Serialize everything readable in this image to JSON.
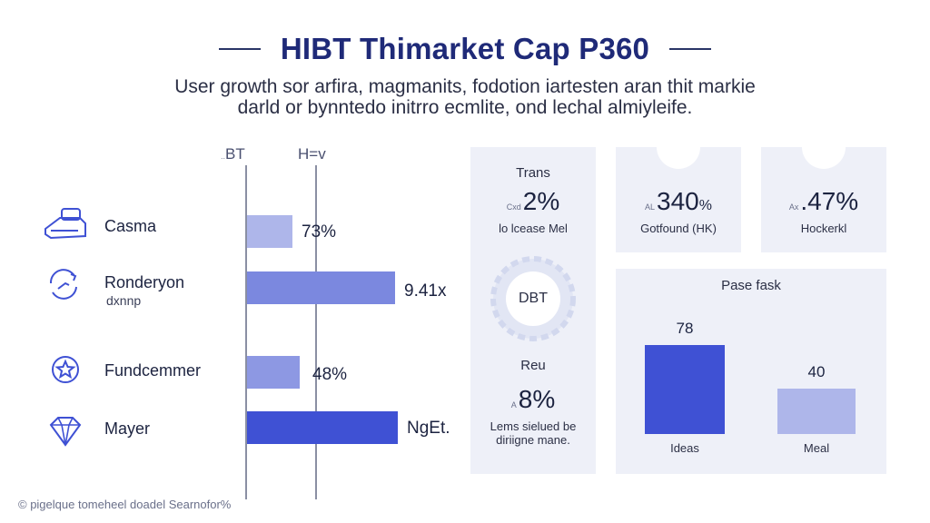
{
  "header": {
    "title": "HIBT Thimarket Cap P360",
    "subtitle_line1": "User growth sor arfira, magmanits, fodotion iartesten aran thit markie",
    "subtitle_line2": "darld or bynntedo initrro ecmlite, ond lechal almiyleife."
  },
  "colors": {
    "accent": "#3f51d4",
    "bar_light": "#aeb6ea",
    "bar_mid": "#7b88df",
    "bar_dark": "#3f51d4",
    "panel": "#eef0f8"
  },
  "chart_data": [
    {
      "type": "bar",
      "orientation": "horizontal",
      "axis_labels": {
        "left_prefix": "..",
        "left": "BT",
        "right": "H=v"
      },
      "categories": [
        {
          "label": "Casma",
          "sub": "",
          "icon": "vr-headset-icon",
          "value_label": "73%"
        },
        {
          "label": "Ronderyon",
          "sub": "dxnnp",
          "icon": "refresh-cycle-icon",
          "value_label": "9.41x"
        },
        {
          "label": "Fundcemmer",
          "sub": "",
          "icon": "star-badge-icon",
          "value_label": "48%"
        },
        {
          "label": "Mayer",
          "sub": "",
          "icon": "diamond-icon",
          "value_label": "NgEt."
        }
      ],
      "values": [
        0.3,
        0.98,
        0.35,
        1.0
      ],
      "value_scale": "fraction of longest bar"
    },
    {
      "type": "bar",
      "title": "Pase fask",
      "categories": [
        "Ideas",
        "Meal"
      ],
      "values": [
        78,
        40
      ]
    }
  ],
  "kpis": {
    "trans": {
      "label": "Trans",
      "prefix": "Cxd",
      "value": "2%",
      "sub": "lo lcease Mel"
    },
    "k340": {
      "prefix": "AL",
      "value": "340",
      "suffix": "%",
      "sub": "Gotfound (HK)"
    },
    "k47": {
      "prefix": "Ax",
      "value": ".47%",
      "sub": "Hockerkl"
    },
    "ring": {
      "label": "DBT"
    },
    "reu": {
      "label": "Reu",
      "prefix": "A",
      "value": "8%",
      "sub_line1": "Lems sielued be",
      "sub_line2": "diriigne mane."
    }
  },
  "footer": {
    "text": "© pigelque tomeheel doadel Searnofor%"
  }
}
